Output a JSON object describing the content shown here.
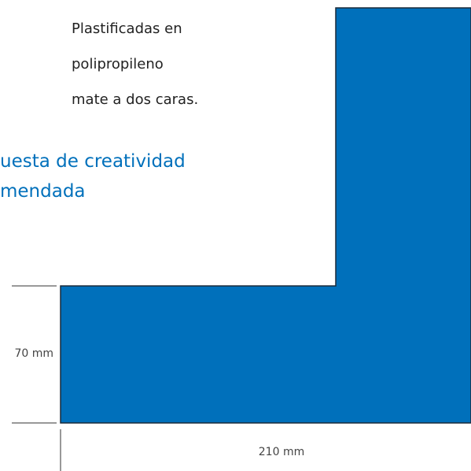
{
  "description": {
    "lines": [
      "Plastificadas en",
      "polipropileno",
      "mate a dos caras."
    ]
  },
  "heading": {
    "lines": [
      "uesta de creatividad",
      "mendada"
    ]
  },
  "dimensions": {
    "height": "70 mm",
    "width": "210 mm"
  }
}
